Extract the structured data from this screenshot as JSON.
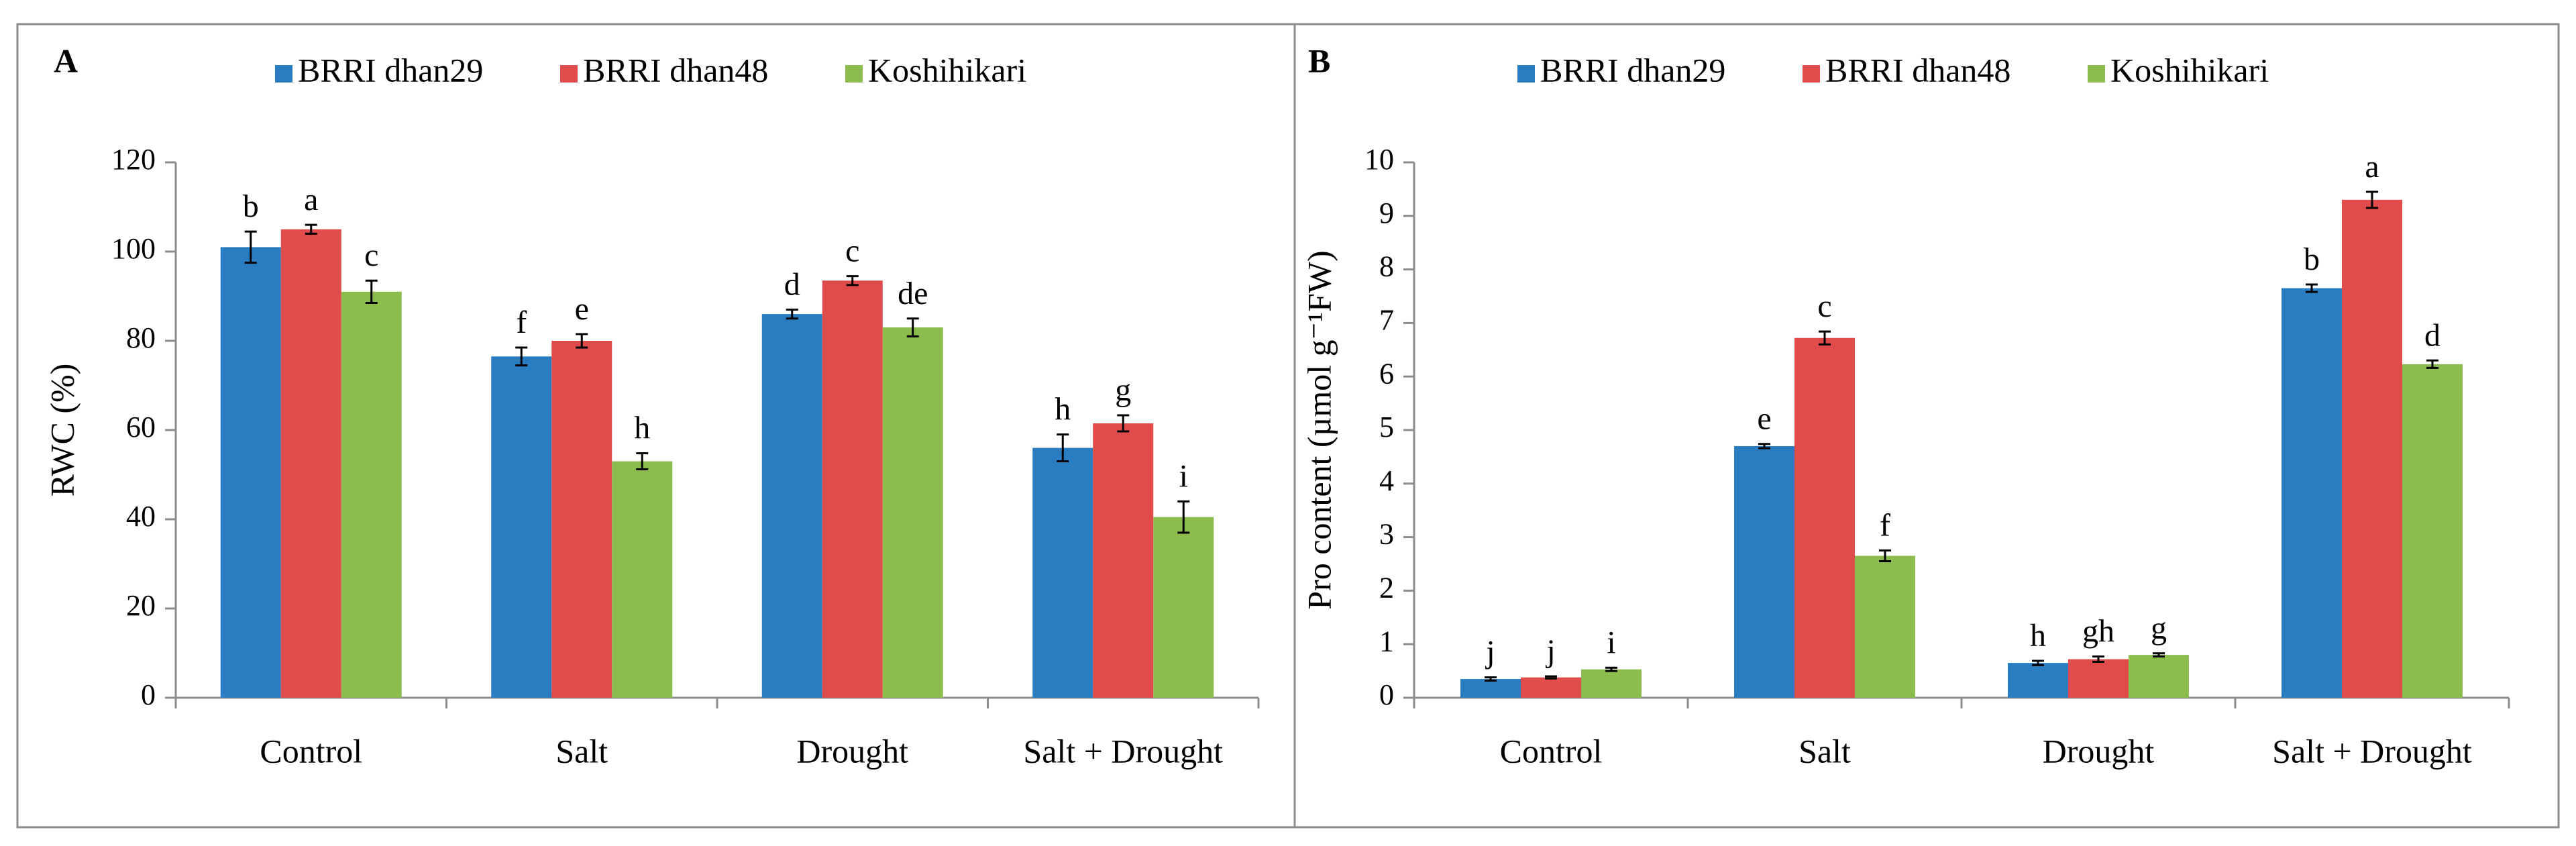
{
  "chart_data": [
    {
      "type": "bar",
      "panel_label": "A",
      "title": "",
      "xlabel": "",
      "ylabel": "RWC (%)",
      "ylim": [
        0,
        120
      ],
      "yticks": [
        0,
        20,
        40,
        60,
        80,
        100,
        120
      ],
      "categories": [
        "Control",
        "Salt",
        "Drought",
        "Salt  + Drought"
      ],
      "legend_position": "top-center",
      "grid": false,
      "series": [
        {
          "name": "BRRI dhan29",
          "color": "#2a7dc1",
          "values": [
            101,
            76.5,
            86,
            56
          ],
          "errors": [
            3.5,
            2,
            1,
            3
          ],
          "letters": [
            "b",
            "f",
            "d",
            "h"
          ]
        },
        {
          "name": "BRRI dhan48",
          "color": "#e04c4b",
          "values": [
            105,
            80,
            93.5,
            61.5
          ],
          "errors": [
            1,
            1.5,
            1,
            1.8
          ],
          "letters": [
            "a",
            "e",
            "c",
            "g"
          ]
        },
        {
          "name": "Koshihikari",
          "color": "#8cbb4e",
          "values": [
            91,
            53,
            83,
            40.5
          ],
          "errors": [
            2.5,
            1.8,
            2,
            3.5
          ],
          "letters": [
            "c",
            "h",
            "de",
            "i"
          ]
        }
      ]
    },
    {
      "type": "bar",
      "panel_label": "B",
      "title": "",
      "xlabel": "",
      "ylabel": "Pro content (µmol g⁻¹FW)",
      "ylim": [
        0,
        10
      ],
      "yticks": [
        0,
        1,
        2,
        3,
        4,
        5,
        6,
        7,
        8,
        9,
        10
      ],
      "categories": [
        "Control",
        "Salt",
        "Drought",
        "Salt  + Drought"
      ],
      "legend_position": "top-center",
      "grid": false,
      "series": [
        {
          "name": "BRRI dhan29",
          "color": "#2a7dc1",
          "values": [
            0.35,
            4.7,
            0.65,
            7.65
          ],
          "errors": [
            0.03,
            0.04,
            0.04,
            0.07
          ],
          "letters": [
            "j",
            "e",
            "h",
            "b"
          ]
        },
        {
          "name": "BRRI dhan48",
          "color": "#e04c4b",
          "values": [
            0.38,
            6.72,
            0.72,
            9.3
          ],
          "errors": [
            0.02,
            0.12,
            0.05,
            0.15
          ],
          "letters": [
            "j",
            "c",
            "gh",
            "a"
          ]
        },
        {
          "name": "Koshihikari",
          "color": "#8cbb4e",
          "values": [
            0.53,
            2.65,
            0.8,
            6.23
          ],
          "errors": [
            0.03,
            0.1,
            0.03,
            0.07
          ],
          "letters": [
            "i",
            "f",
            "g",
            "d"
          ]
        }
      ]
    }
  ]
}
